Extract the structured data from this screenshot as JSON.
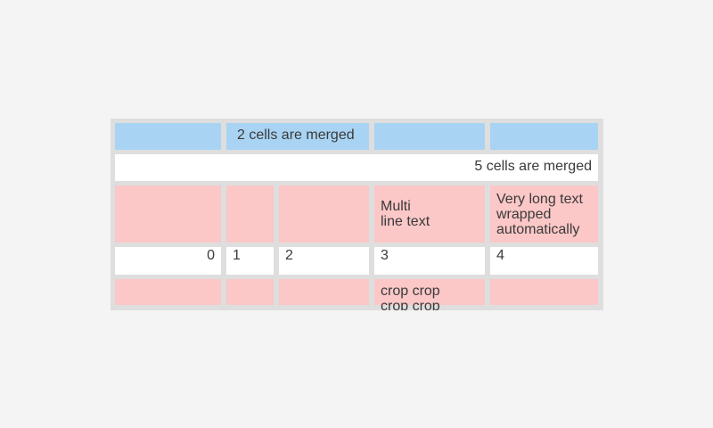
{
  "colors": {
    "page-bg": "#f4f4f4",
    "table-bg": "#dedede",
    "cell-blue": "#a9d3f3",
    "cell-pink": "#fbc7c7",
    "cell-white": "#ffffff",
    "text": "#3a3a3a"
  },
  "table": {
    "rows": [
      {
        "cells": [
          {
            "text": ""
          },
          {
            "text": "2 cells are merged"
          },
          {
            "text": ""
          },
          {
            "text": ""
          }
        ]
      },
      {
        "cells": [
          {
            "text": "5 cells are merged"
          }
        ]
      },
      {
        "cells": [
          {
            "text": ""
          },
          {
            "text": ""
          },
          {
            "text": ""
          },
          {
            "text": "Multi\nline text"
          },
          {
            "text": "Very long text wrapped automatically"
          }
        ]
      },
      {
        "cells": [
          {
            "text": "0"
          },
          {
            "text": "1"
          },
          {
            "text": "2"
          },
          {
            "text": "3"
          },
          {
            "text": "4"
          }
        ]
      },
      {
        "cells": [
          {
            "text": ""
          },
          {
            "text": ""
          },
          {
            "text": ""
          },
          {
            "text": "crop crop\ncrop crop"
          },
          {
            "text": ""
          }
        ]
      }
    ]
  }
}
